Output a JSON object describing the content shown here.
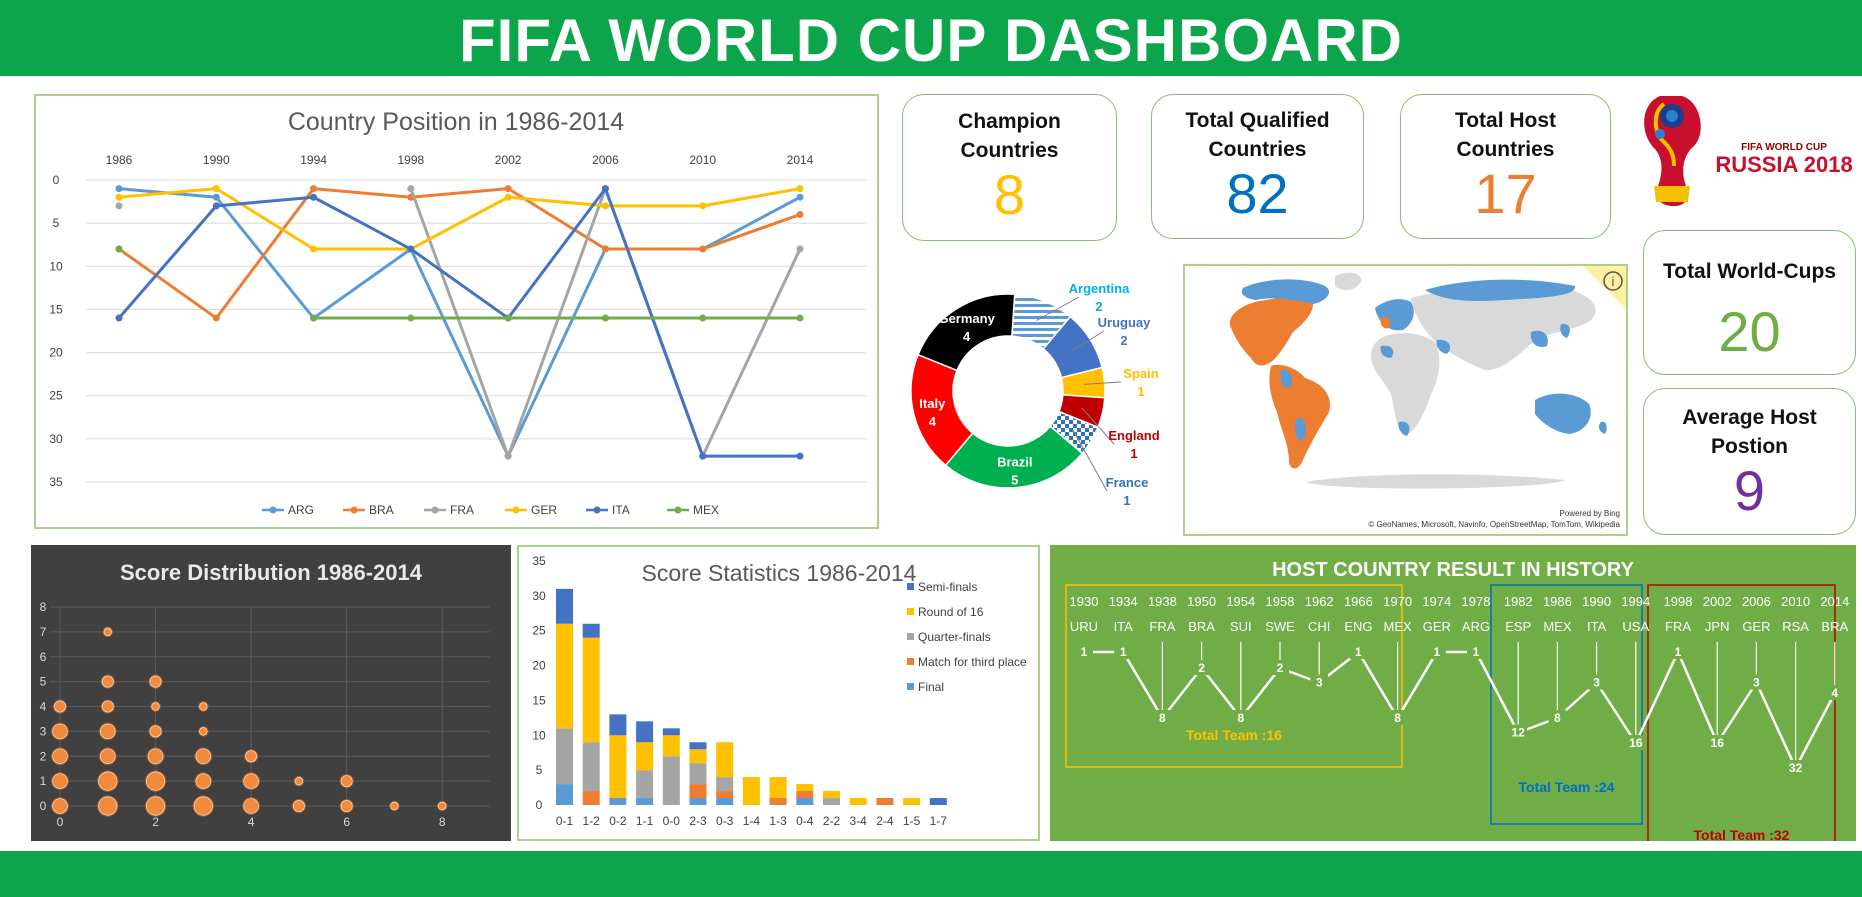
{
  "header": {
    "title": "FIFA WORLD CUP DASHBOARD"
  },
  "kpis": {
    "champions": {
      "label": "Champion Countries",
      "value": "8",
      "color": "#ffc000"
    },
    "qualified": {
      "label": "Total Qualified Countries",
      "value": "82",
      "color": "#0070c0"
    },
    "hosts": {
      "label": "Total Host Countries",
      "value": "17",
      "color": "#ed7d31"
    },
    "worldcups": {
      "label": "Total World-Cups",
      "value": "20",
      "color": "#70ad47"
    },
    "avg_host": {
      "label": "Average Host Postion",
      "value": "9",
      "color": "#7030a0"
    }
  },
  "logo": {
    "line1": "FIFA WORLD CUP",
    "line2": "RUSSIA 2018"
  },
  "map": {
    "credit1": "Powered by Bing",
    "credit2": "© GeoNames, Microsoft, Navinfo, OpenStreetMap, TomTom, Wikipedia",
    "host_color": "#ed7d31",
    "qualified_color": "#5b9bd5",
    "other_color": "#d9d9d9",
    "info_icon": "info-icon"
  },
  "chart_data": [
    {
      "id": "position",
      "type": "line",
      "title": "Country Position in 1986-2014",
      "x": [
        "1986",
        "1990",
        "1994",
        "1998",
        "2002",
        "2006",
        "2010",
        "2014"
      ],
      "ylim": [
        0,
        35
      ],
      "y_inverted": true,
      "y_ticks": [
        0,
        5,
        10,
        15,
        20,
        25,
        30,
        35
      ],
      "legend_position": "bottom",
      "series": [
        {
          "name": "ARG",
          "color": "#5b9bd5",
          "values": [
            1,
            2,
            16,
            8,
            32,
            8,
            8,
            2
          ]
        },
        {
          "name": "BRA",
          "color": "#ed7d31",
          "values": [
            8,
            16,
            1,
            2,
            1,
            8,
            8,
            4
          ]
        },
        {
          "name": "FRA",
          "color": "#a5a5a5",
          "values": [
            3,
            null,
            null,
            1,
            32,
            1,
            32,
            8
          ]
        },
        {
          "name": "GER",
          "color": "#ffc000",
          "values": [
            2,
            1,
            8,
            8,
            2,
            3,
            3,
            1
          ]
        },
        {
          "name": "ITA",
          "color": "#4472c4",
          "values": [
            16,
            3,
            2,
            8,
            16,
            1,
            32,
            32
          ]
        },
        {
          "name": "MEX",
          "color": "#70ad47",
          "values": [
            8,
            null,
            16,
            16,
            16,
            16,
            16,
            16
          ]
        }
      ]
    },
    {
      "id": "donut",
      "type": "pie",
      "series": [
        {
          "name": "Argentina",
          "value": 2,
          "color": "#5b9bd5",
          "label_color": "#00b0f0",
          "pattern": "stripes"
        },
        {
          "name": "Uruguay",
          "value": 2,
          "color": "#4472c4",
          "label_color": "#4472c4"
        },
        {
          "name": "Spain",
          "value": 1,
          "color": "#ffc000",
          "label_color": "#ffc000"
        },
        {
          "name": "England",
          "value": 1,
          "color": "#c00000",
          "label_color": "#c00000"
        },
        {
          "name": "France",
          "value": 1,
          "color": "#2e75b6",
          "label_color": "#2e75b6",
          "pattern": "checker"
        },
        {
          "name": "Brazil",
          "value": 5,
          "color": "#00b050",
          "label_color": "#ffffff"
        },
        {
          "name": "Italy",
          "value": 4,
          "color": "#ff0000",
          "label_color": "#ffffff"
        },
        {
          "name": "Germany",
          "value": 4,
          "color": "#000000",
          "label_color": "#ffffff"
        }
      ]
    },
    {
      "id": "scatter",
      "type": "scatter",
      "title": "Score Distribution 1986-2014",
      "xlim": [
        0,
        9
      ],
      "ylim": [
        0,
        8
      ],
      "x_ticks": [
        0,
        2,
        4,
        6,
        8
      ],
      "y_ticks": [
        0,
        1,
        2,
        3,
        4,
        5,
        6,
        7,
        8
      ],
      "points": [
        {
          "x": 0,
          "y": 0,
          "s": 3
        },
        {
          "x": 1,
          "y": 0,
          "s": 4
        },
        {
          "x": 2,
          "y": 0,
          "s": 4
        },
        {
          "x": 3,
          "y": 0,
          "s": 4
        },
        {
          "x": 4,
          "y": 0,
          "s": 3
        },
        {
          "x": 5,
          "y": 0,
          "s": 2
        },
        {
          "x": 6,
          "y": 0,
          "s": 2
        },
        {
          "x": 7,
          "y": 0,
          "s": 1
        },
        {
          "x": 8,
          "y": 0,
          "s": 1
        },
        {
          "x": 0,
          "y": 1,
          "s": 3
        },
        {
          "x": 1,
          "y": 1,
          "s": 4
        },
        {
          "x": 2,
          "y": 1,
          "s": 4
        },
        {
          "x": 3,
          "y": 1,
          "s": 3
        },
        {
          "x": 4,
          "y": 1,
          "s": 3
        },
        {
          "x": 5,
          "y": 1,
          "s": 1
        },
        {
          "x": 6,
          "y": 1,
          "s": 2
        },
        {
          "x": 0,
          "y": 2,
          "s": 3
        },
        {
          "x": 1,
          "y": 2,
          "s": 3
        },
        {
          "x": 2,
          "y": 2,
          "s": 3
        },
        {
          "x": 3,
          "y": 2,
          "s": 3
        },
        {
          "x": 4,
          "y": 2,
          "s": 2
        },
        {
          "x": 0,
          "y": 3,
          "s": 3
        },
        {
          "x": 1,
          "y": 3,
          "s": 3
        },
        {
          "x": 2,
          "y": 3,
          "s": 2
        },
        {
          "x": 3,
          "y": 3,
          "s": 1
        },
        {
          "x": 0,
          "y": 4,
          "s": 2
        },
        {
          "x": 1,
          "y": 4,
          "s": 2
        },
        {
          "x": 2,
          "y": 4,
          "s": 1
        },
        {
          "x": 3,
          "y": 4,
          "s": 1
        },
        {
          "x": 1,
          "y": 5,
          "s": 2
        },
        {
          "x": 2,
          "y": 5,
          "s": 2
        },
        {
          "x": 1,
          "y": 7,
          "s": 1
        }
      ]
    },
    {
      "id": "stacked",
      "type": "bar",
      "stacked": true,
      "title": "Score Statistics 1986-2014",
      "categories": [
        "0-1",
        "1-2",
        "0-2",
        "1-1",
        "0-0",
        "2-3",
        "0-3",
        "1-4",
        "1-3",
        "0-4",
        "2-2",
        "3-4",
        "2-4",
        "1-5",
        "1-7"
      ],
      "ylim": [
        0,
        35
      ],
      "y_ticks": [
        0,
        5,
        10,
        15,
        20,
        25,
        30,
        35
      ],
      "legend_position": "right",
      "series": [
        {
          "name": "Final",
          "color": "#5b9bd5",
          "values": [
            3,
            0,
            1,
            1,
            0,
            1,
            1,
            0,
            0,
            1,
            0,
            0,
            0,
            0,
            0
          ]
        },
        {
          "name": "Match for third place",
          "color": "#ed7d31",
          "values": [
            0,
            2,
            0,
            0,
            0,
            2,
            1,
            0,
            1,
            1,
            0,
            0,
            1,
            0,
            0
          ]
        },
        {
          "name": "Quarter-finals",
          "color": "#a5a5a5",
          "values": [
            8,
            7,
            0,
            4,
            7,
            3,
            2,
            0,
            0,
            0,
            1,
            0,
            0,
            0,
            0
          ]
        },
        {
          "name": "Round of 16",
          "color": "#ffc000",
          "values": [
            15,
            15,
            9,
            4,
            3,
            2,
            5,
            4,
            3,
            1,
            1,
            1,
            0,
            1,
            0
          ]
        },
        {
          "name": "Semi-finals",
          "color": "#4472c4",
          "values": [
            5,
            2,
            3,
            3,
            1,
            1,
            0,
            0,
            0,
            0,
            0,
            0,
            0,
            0,
            1
          ]
        }
      ],
      "legend_order": [
        "Semi-finals",
        "Round of 16",
        "Quarter-finals",
        "Match for third place",
        "Final"
      ]
    },
    {
      "id": "host",
      "type": "line",
      "title": "HOST COUNTRY RESULT IN HISTORY",
      "x": [
        "1930",
        "1934",
        "1938",
        "1950",
        "1954",
        "1958",
        "1962",
        "1966",
        "1970",
        "1974",
        "1978",
        "1982",
        "1986",
        "1990",
        "1994",
        "1998",
        "2002",
        "2006",
        "2010",
        "2014"
      ],
      "hosts": [
        "URU",
        "ITA",
        "FRA",
        "BRA",
        "SUI",
        "SWE",
        "CHI",
        "ENG",
        "MEX",
        "GER",
        "ARG",
        "ESP",
        "MEX",
        "ITA",
        "USA",
        "FRA",
        "JPN",
        "GER",
        "RSA",
        "BRA"
      ],
      "values": [
        1,
        1,
        8,
        2,
        8,
        2,
        3,
        1,
        8,
        1,
        1,
        12,
        8,
        3,
        16,
        1,
        16,
        3,
        32,
        4
      ],
      "groups": [
        {
          "label": "Total Team :16",
          "color": "#ffc000",
          "from": 0,
          "to": 10
        },
        {
          "label": "Total Team :24",
          "color": "#0070c0",
          "from": 11,
          "to": 14
        },
        {
          "label": "Total Team :32",
          "color": "#c00000",
          "from": 15,
          "to": 19
        }
      ]
    }
  ]
}
